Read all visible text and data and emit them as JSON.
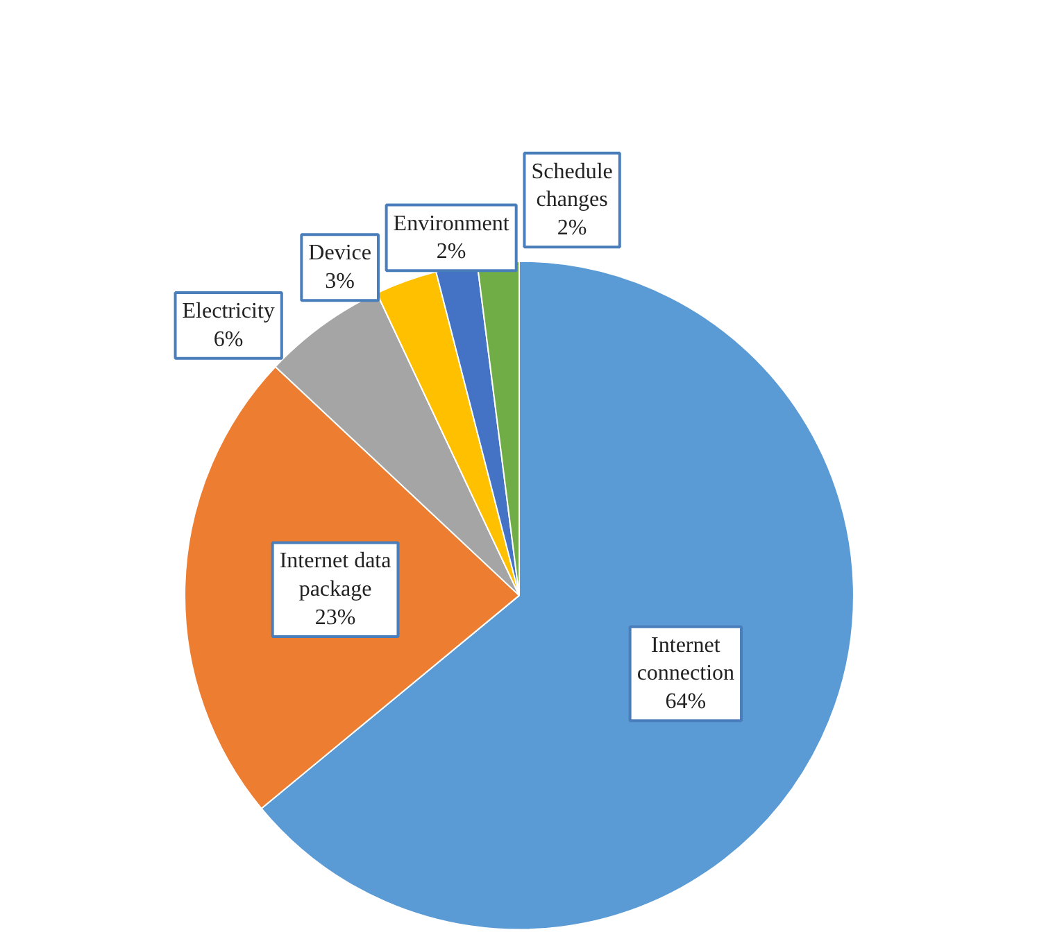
{
  "chart_data": {
    "type": "pie",
    "categories": [
      "Internet connection",
      "Internet data package",
      "Electricity",
      "Device",
      "Environment",
      "Schedule changes"
    ],
    "values": [
      64,
      23,
      6,
      3,
      2,
      2
    ],
    "colors": [
      "#5b9bd5",
      "#ed7d31",
      "#a5a5a5",
      "#ffc000",
      "#4472c4",
      "#70ad47"
    ],
    "value_labels": [
      "64%",
      "23%",
      "6%",
      "3%",
      "2%",
      "2%"
    ]
  }
}
